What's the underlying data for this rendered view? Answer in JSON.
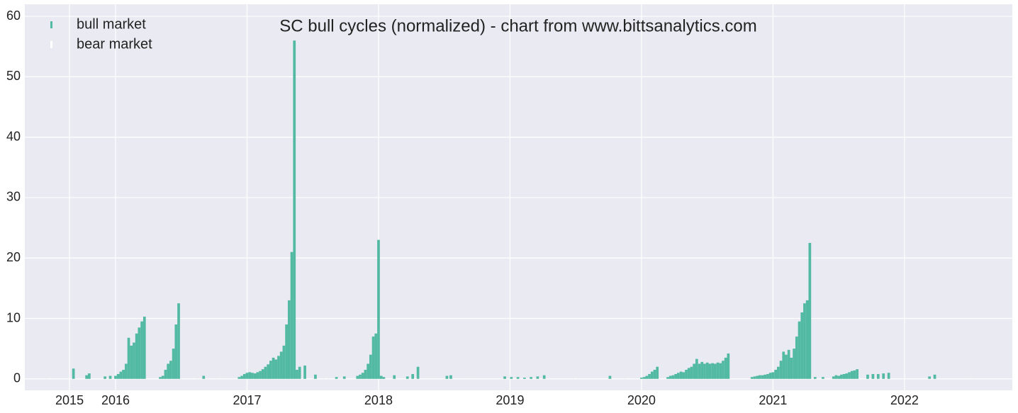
{
  "chart_data": {
    "type": "bar",
    "title": "SC bull cycles (normalized)  - chart from www.bittsanalytics.com",
    "xlim": [
      2015.31,
      2022.82
    ],
    "xticks": [
      {
        "value": 2015.65,
        "label": "2015"
      },
      2016,
      2017,
      2018,
      2019,
      2020,
      2021,
      2022
    ],
    "ylim": [
      -1.9,
      62
    ],
    "yticks": [
      0,
      10,
      20,
      30,
      40,
      50,
      60
    ],
    "grid": true,
    "legend": "upper left",
    "bar_width": 0.02,
    "series": [
      {
        "name": "bull market",
        "color": "#52b9a3",
        "x": [
          2015.68,
          2015.78,
          2015.8,
          2015.92,
          2015.96,
          2016,
          2016.02,
          2016.04,
          2016.06,
          2016.08,
          2016.1,
          2016.12,
          2016.14,
          2016.16,
          2016.18,
          2016.2,
          2016.22,
          2016.34,
          2016.36,
          2016.38,
          2016.4,
          2016.42,
          2016.44,
          2016.46,
          2016.48,
          2016.67,
          2016.94,
          2016.96,
          2016.98,
          2017,
          2017.02,
          2017.04,
          2017.06,
          2017.08,
          2017.1,
          2017.12,
          2017.14,
          2017.16,
          2017.18,
          2017.2,
          2017.22,
          2017.24,
          2017.26,
          2017.28,
          2017.3,
          2017.32,
          2017.34,
          2017.36,
          2017.38,
          2017.4,
          2017.44,
          2017.52,
          2017.68,
          2017.74,
          2017.84,
          2017.86,
          2017.88,
          2017.9,
          2017.92,
          2017.94,
          2017.96,
          2017.98,
          2018,
          2018.02,
          2018.04,
          2018.12,
          2018.22,
          2018.26,
          2018.3,
          2018.52,
          2018.55,
          2018.96,
          2019.01,
          2019.06,
          2019.11,
          2019.16,
          2019.21,
          2019.26,
          2019.76,
          2020,
          2020.02,
          2020.04,
          2020.06,
          2020.08,
          2020.1,
          2020.12,
          2020.2,
          2020.22,
          2020.24,
          2020.26,
          2020.28,
          2020.3,
          2020.32,
          2020.34,
          2020.36,
          2020.38,
          2020.4,
          2020.42,
          2020.44,
          2020.46,
          2020.48,
          2020.5,
          2020.52,
          2020.54,
          2020.56,
          2020.58,
          2020.6,
          2020.62,
          2020.64,
          2020.66,
          2020.84,
          2020.86,
          2020.88,
          2020.9,
          2020.92,
          2020.94,
          2020.96,
          2020.98,
          2021,
          2021.02,
          2021.04,
          2021.06,
          2021.08,
          2021.1,
          2021.12,
          2021.14,
          2021.16,
          2021.18,
          2021.2,
          2021.22,
          2021.24,
          2021.26,
          2021.28,
          2021.32,
          2021.38,
          2021.46,
          2021.48,
          2021.5,
          2021.52,
          2021.54,
          2021.56,
          2021.58,
          2021.6,
          2021.62,
          2021.64,
          2021.72,
          2021.76,
          2021.8,
          2021.84,
          2021.88,
          2022.19,
          2022.23
        ],
        "values": [
          1.7,
          0.6,
          0.9,
          0.4,
          0.5,
          0.5,
          0.8,
          1.2,
          1.5,
          2.5,
          6.8,
          5.5,
          6,
          7.5,
          8.5,
          9.5,
          10.3,
          0.3,
          0.5,
          1.5,
          2.5,
          3,
          5,
          9,
          12.5,
          0.5,
          0.3,
          0.5,
          0.8,
          1,
          1.1,
          1,
          0.9,
          1.1,
          1.3,
          1.6,
          2,
          2.4,
          3,
          3.5,
          3.2,
          3.8,
          4.5,
          5.5,
          9,
          13,
          21,
          56,
          1.5,
          2,
          2.2,
          0.7,
          0.3,
          0.4,
          0.5,
          0.7,
          1,
          1.5,
          2.5,
          4,
          7,
          7.5,
          23,
          0.5,
          0.3,
          0.6,
          0.4,
          0.8,
          2,
          0.5,
          0.6,
          0.4,
          0.3,
          0.3,
          0.2,
          0.3,
          0.4,
          0.6,
          0.5,
          0.2,
          0.3,
          0.5,
          0.8,
          1.2,
          1.5,
          2,
          0.3,
          0.5,
          0.6,
          0.8,
          1,
          1.2,
          1.1,
          1.5,
          1.8,
          2,
          2.5,
          3.3,
          2.5,
          2.8,
          2.5,
          2.7,
          2.5,
          2.6,
          2.5,
          2.7,
          2.6,
          3,
          3.5,
          4.2,
          0.3,
          0.4,
          0.5,
          0.6,
          0.6,
          0.7,
          0.8,
          1,
          1.1,
          1.5,
          2,
          3,
          4.5,
          4,
          4.8,
          3.5,
          5,
          7,
          9.5,
          11,
          12.5,
          13,
          22.5,
          0.3,
          0.3,
          0.4,
          0.6,
          0.5,
          0.7,
          0.8,
          0.9,
          1.1,
          1.3,
          1.4,
          1.6,
          0.7,
          0.8,
          0.8,
          0.9,
          1,
          0.4,
          0.7
        ]
      },
      {
        "name": "bear market",
        "color": "#ffffff",
        "x": [
          2015.5,
          2016.6,
          2016.8,
          2017.6,
          2018.4,
          2018.7,
          2019.5,
          2019.9,
          2022.0,
          2022.5
        ],
        "values": [
          0.1,
          0.1,
          0.1,
          0.1,
          0.1,
          0.1,
          0.1,
          0.1,
          0.1,
          0.1
        ]
      }
    ]
  }
}
